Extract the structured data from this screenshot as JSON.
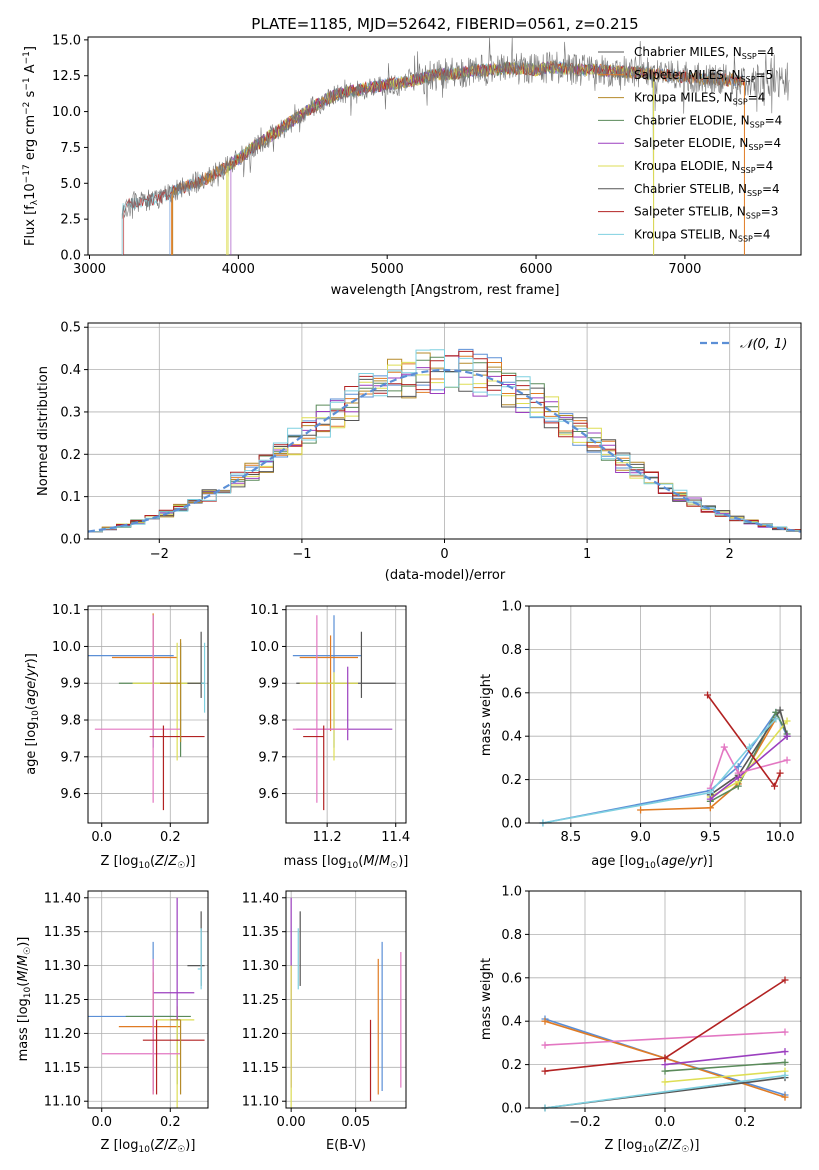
{
  "colors": [
    "#5b8fd6",
    "#e07b24",
    "#b58a2a",
    "#5a8a5a",
    "#9b3fbf",
    "#dede55",
    "#555555",
    "#b22222",
    "#7fd0e0",
    "#e377c2"
  ],
  "chart_data": [
    {
      "id": "spectrum",
      "type": "line",
      "title": "PLATE=1185, MJD=52642, FIBERID=0561, z=0.215",
      "xlabel": "wavelength [Angstrom, rest frame]",
      "ylabel": "Flux [f_λ 10^-17 erg cm^-2 s^-1 A^-1]",
      "xlim": [
        2990,
        7780
      ],
      "ylim": [
        0,
        15.2
      ],
      "xticks": [
        "3000",
        "4000",
        "5000",
        "6000",
        "7000"
      ],
      "yticks": [
        "0.0",
        "2.5",
        "5.0",
        "7.5",
        "10.0",
        "12.5",
        "15.0"
      ],
      "legend": [
        {
          "label": "Chabrier MILES, N",
          "sub": "SSP",
          "val": "=4"
        },
        {
          "label": "Salpeter MILES, N",
          "sub": "SSP",
          "val": "=5"
        },
        {
          "label": "Kroupa MILES, N",
          "sub": "SSP",
          "val": "=4"
        },
        {
          "label": "Chabrier ELODIE, N",
          "sub": "SSP",
          "val": "=4"
        },
        {
          "label": "Salpeter ELODIE, N",
          "sub": "SSP",
          "val": "=4"
        },
        {
          "label": "Kroupa ELODIE, N",
          "sub": "SSP",
          "val": "=4"
        },
        {
          "label": "Chabrier STELIB, N",
          "sub": "SSP",
          "val": "=4"
        },
        {
          "label": "Salpeter STELIB, N",
          "sub": "SSP",
          "val": "=3"
        },
        {
          "label": "Kroupa STELIB, N",
          "sub": "SSP",
          "val": "=4"
        }
      ],
      "legend_placement": "right",
      "data_x": [
        3220,
        3300,
        3400,
        3500,
        3600,
        3700,
        3800,
        3900,
        4000,
        4100,
        4200,
        4300,
        4400,
        4500,
        4600,
        4700,
        4800,
        4900,
        5000,
        5100,
        5200,
        5300,
        5400,
        5500,
        5600,
        5700,
        5800,
        5900,
        6000,
        6100,
        6200,
        6300,
        6400,
        6500,
        6600,
        6700,
        6800,
        6900,
        7000,
        7100,
        7200,
        7300,
        7400
      ],
      "data_y": [
        3.3,
        3.6,
        3.8,
        4.1,
        4.6,
        5.0,
        5.4,
        6.0,
        6.7,
        7.5,
        8.2,
        8.9,
        9.6,
        10.3,
        10.9,
        11.3,
        11.5,
        11.7,
        11.9,
        12.0,
        12.2,
        12.5,
        12.6,
        12.7,
        12.9,
        12.9,
        13.0,
        13.0,
        12.9,
        13.1,
        13.0,
        12.9,
        12.9,
        12.8,
        12.8,
        12.7,
        12.6,
        12.5,
        12.4,
        12.3,
        12.3,
        12.2,
        12.1
      ]
    },
    {
      "id": "residuals",
      "type": "line",
      "ylabel": "Normed distribution",
      "xlabel": "(data-model)/error",
      "xlim": [
        -2.5,
        2.5
      ],
      "ylim": [
        0,
        0.51
      ],
      "xticks": [
        "−2",
        "−1",
        "0",
        "1",
        "2"
      ],
      "yticks": [
        "0.0",
        "0.1",
        "0.2",
        "0.3",
        "0.4",
        "0.5"
      ],
      "legend": "𝒩(0, 1)",
      "legend_placement": "top-right",
      "grid": true
    },
    {
      "id": "age-vs-Z",
      "type": "scatter",
      "xlabel": "Z [log10(Z/Z☉)]",
      "ylabel": "age  [log10(age/yr)]",
      "xlim": [
        -0.04,
        0.31
      ],
      "ylim": [
        9.52,
        10.11
      ],
      "xticks": [
        "0.0",
        "0.2"
      ],
      "yticks": [
        "9.6",
        "9.7",
        "9.8",
        "9.9",
        "10.0",
        "10.1"
      ],
      "points": [
        {
          "x": 0.15,
          "y": 9.975,
          "ci": 0,
          "dx": [
            -0.19,
            0.06
          ],
          "dy": [
            -0.25,
            0.11
          ]
        },
        {
          "x": 0.15,
          "y": 9.97,
          "ci": 1,
          "dx": [
            -0.12,
            0.07
          ],
          "dy": [
            -0.2,
            0.12
          ]
        },
        {
          "x": 0.23,
          "y": 9.9,
          "ci": 3,
          "dx": [
            -0.18,
            0.07
          ],
          "dy": [
            -0.2,
            0.11
          ]
        },
        {
          "x": 0.22,
          "y": 9.9,
          "ci": 5,
          "dx": [
            -0.13,
            0.08
          ],
          "dy": [
            -0.21,
            0.11
          ]
        },
        {
          "x": 0.29,
          "y": 9.9,
          "ci": 6,
          "dx": [
            -0.04,
            0.01
          ],
          "dy": [
            -0.04,
            0.14
          ]
        },
        {
          "x": 0.3,
          "y": 9.9,
          "ci": 8,
          "dx": [
            -0.01,
            0.0
          ],
          "dy": [
            -0.08,
            0.11
          ]
        },
        {
          "x": 0.15,
          "y": 9.775,
          "ci": 9,
          "dx": [
            -0.17,
            0.08
          ],
          "dy": [
            -0.2,
            0.31
          ]
        },
        {
          "x": 0.18,
          "y": 9.755,
          "ci": 7,
          "dx": [
            -0.04,
            0.12
          ],
          "dy": [
            -0.2,
            0.03
          ]
        },
        {
          "x": 0.23,
          "y": 9.9,
          "ci": 2,
          "dx": [
            -0.06,
            0.0
          ],
          "dy": [
            -0.16,
            0.12
          ]
        }
      ]
    },
    {
      "id": "age-vs-mass",
      "type": "scatter",
      "xlabel": "mass [log10(M/M☉)]",
      "xlim": [
        11.08,
        11.43
      ],
      "ylim": [
        9.52,
        10.11
      ],
      "xticks": [
        "11.2",
        "11.4"
      ],
      "yticks": [
        "9.6",
        "9.7",
        "9.8",
        "9.9",
        "10.0",
        "10.1"
      ],
      "points": [
        {
          "x": 11.22,
          "y": 9.975,
          "ci": 0,
          "dx": [
            -0.12,
            0.08
          ],
          "dy": [
            -0.25,
            0.11
          ]
        },
        {
          "x": 11.21,
          "y": 9.97,
          "ci": 1,
          "dx": [
            -0.09,
            0.08
          ],
          "dy": [
            -0.2,
            0.06
          ]
        },
        {
          "x": 11.3,
          "y": 9.9,
          "ci": 6,
          "dx": [
            -0.19,
            0.1
          ],
          "dy": [
            -0.04,
            0.14
          ]
        },
        {
          "x": 11.22,
          "y": 9.9,
          "ci": 5,
          "dx": [
            -0.1,
            0.07
          ],
          "dy": [
            -0.21,
            0.03
          ]
        },
        {
          "x": 11.26,
          "y": 9.775,
          "ci": 4,
          "dx": [
            -0.15,
            0.13
          ],
          "dy": [
            -0.03,
            0.17
          ]
        },
        {
          "x": 11.17,
          "y": 9.775,
          "ci": 9,
          "dx": [
            -0.07,
            0.09
          ],
          "dy": [
            -0.2,
            0.31
          ]
        },
        {
          "x": 11.19,
          "y": 9.755,
          "ci": 7,
          "dx": [
            -0.06,
            0.0
          ],
          "dy": [
            -0.2,
            0.03
          ]
        }
      ]
    },
    {
      "id": "weight-vs-age",
      "type": "line",
      "xlabel": "age  [log10(age/yr)]",
      "ylabel": "mass weight",
      "xlim": [
        8.2,
        10.15
      ],
      "ylim": [
        0,
        1.0
      ],
      "xticks": [
        "8.5",
        "9.0",
        "9.5",
        "10.0"
      ],
      "yticks": [
        "0.0",
        "0.2",
        "0.4",
        "0.6",
        "0.8",
        "1.0"
      ],
      "grid": true,
      "series": [
        {
          "ci": 0,
          "x": [
            8.3,
            9.5,
            9.7,
            9.97,
            10.05
          ],
          "y": [
            0.0,
            0.15,
            0.26,
            0.51,
            0.4
          ]
        },
        {
          "ci": 1,
          "x": [
            9.0,
            9.5,
            9.7,
            9.97
          ],
          "y": [
            0.06,
            0.07,
            0.18,
            0.48
          ]
        },
        {
          "ci": 3,
          "x": [
            9.5,
            9.7,
            9.97,
            10.05
          ],
          "y": [
            0.1,
            0.17,
            0.51,
            0.41
          ]
        },
        {
          "ci": 5,
          "x": [
            9.5,
            9.7,
            10.05
          ],
          "y": [
            0.12,
            0.19,
            0.47
          ]
        },
        {
          "ci": 6,
          "x": [
            9.5,
            9.7,
            10.0,
            10.05
          ],
          "y": [
            0.13,
            0.22,
            0.52,
            0.4
          ]
        },
        {
          "ci": 4,
          "x": [
            9.5,
            9.7,
            10.05
          ],
          "y": [
            0.11,
            0.21,
            0.4
          ]
        },
        {
          "ci": 9,
          "x": [
            9.5,
            9.6,
            9.7,
            10.05
          ],
          "y": [
            0.16,
            0.35,
            0.23,
            0.29
          ]
        },
        {
          "ci": 7,
          "x": [
            9.48,
            9.96,
            10.0
          ],
          "y": [
            0.59,
            0.17,
            0.23
          ]
        },
        {
          "ci": 8,
          "x": [
            8.3,
            9.5,
            9.78,
            9.97
          ],
          "y": [
            0.0,
            0.14,
            0.35,
            0.48
          ]
        }
      ]
    },
    {
      "id": "mass-vs-Z",
      "type": "scatter",
      "xlabel": "Z [log10(Z/Z☉)]",
      "ylabel": "mass [log10(M/M☉)]",
      "xlim": [
        -0.04,
        0.31
      ],
      "ylim": [
        11.09,
        11.41
      ],
      "xticks": [
        "0.0",
        "0.2"
      ],
      "yticks": [
        "11.10",
        "11.15",
        "11.20",
        "11.25",
        "11.30",
        "11.35",
        "11.40"
      ],
      "points": [
        {
          "x": 0.15,
          "y": 11.225,
          "ci": 0,
          "dx": [
            -0.19,
            0.06
          ],
          "dy": [
            -0.11,
            0.11
          ]
        },
        {
          "x": 0.15,
          "y": 11.21,
          "ci": 1,
          "dx": [
            -0.1,
            0.08
          ],
          "dy": [
            -0.1,
            0.08
          ]
        },
        {
          "x": 0.22,
          "y": 11.225,
          "ci": 3,
          "dx": [
            -0.15,
            0.04
          ],
          "dy": [
            -0.1,
            0.0
          ]
        },
        {
          "x": 0.22,
          "y": 11.22,
          "ci": 5,
          "dx": [
            -0.06,
            0.05
          ],
          "dy": [
            -0.13,
            0.02
          ]
        },
        {
          "x": 0.22,
          "y": 11.26,
          "ci": 4,
          "dx": [
            -0.07,
            0.05
          ],
          "dy": [
            -0.04,
            0.14
          ]
        },
        {
          "x": 0.29,
          "y": 11.3,
          "ci": 6,
          "dx": [
            -0.04,
            0.01
          ],
          "dy": [
            -0.03,
            0.08
          ]
        },
        {
          "x": 0.29,
          "y": 11.295,
          "ci": 8,
          "dx": [
            -0.01,
            0.0
          ],
          "dy": [
            -0.03,
            0.06
          ]
        },
        {
          "x": 0.15,
          "y": 11.17,
          "ci": 9,
          "dx": [
            -0.15,
            0.08
          ],
          "dy": [
            -0.06,
            0.14
          ]
        },
        {
          "x": 0.16,
          "y": 11.19,
          "ci": 7,
          "dx": [
            -0.04,
            0.14
          ],
          "dy": [
            -0.08,
            0.03
          ]
        },
        {
          "x": 0.23,
          "y": 11.22,
          "ci": 2,
          "dx": [
            -0.03,
            0.0
          ],
          "dy": [
            -0.11,
            0.0
          ]
        }
      ]
    },
    {
      "id": "mass-vs-ebv",
      "type": "scatter",
      "xlabel": "E(B-V)",
      "xlim": [
        -0.004,
        0.089
      ],
      "ylim": [
        11.09,
        11.41
      ],
      "xticks": [
        "0.00",
        "0.05"
      ],
      "yticks": [
        "11.10",
        "11.15",
        "11.20",
        "11.25",
        "11.30",
        "11.35",
        "11.40"
      ],
      "points": [
        {
          "x": 0.0705,
          "y": 11.225,
          "ci": 0,
          "dy": [
            -0.11,
            0.11
          ]
        },
        {
          "x": 0.0675,
          "y": 11.21,
          "ci": 1,
          "dy": [
            -0.1,
            0.1
          ]
        },
        {
          "x": 0.0,
          "y": 11.26,
          "ci": 4,
          "dy": [
            -0.14,
            0.14
          ]
        },
        {
          "x": 0.0,
          "y": 11.22,
          "ci": 5,
          "dy": [
            -0.13,
            0.08
          ]
        },
        {
          "x": 0.007,
          "y": 11.3,
          "ci": 6,
          "dy": [
            -0.03,
            0.08
          ]
        },
        {
          "x": 0.0055,
          "y": 11.295,
          "ci": 8,
          "dy": [
            -0.03,
            0.06
          ]
        },
        {
          "x": 0.085,
          "y": 11.22,
          "ci": 9,
          "dy": [
            -0.1,
            0.1
          ]
        },
        {
          "x": 0.0615,
          "y": 11.16,
          "ci": 7,
          "dy": [
            -0.06,
            0.06
          ]
        }
      ]
    },
    {
      "id": "weight-vs-Z",
      "type": "line",
      "xlabel": "Z [log10(Z/Z☉)]",
      "ylabel": "mass weight",
      "xlim": [
        -0.34,
        0.34
      ],
      "ylim": [
        0,
        1.0
      ],
      "xticks": [
        "−0.2",
        "0.0",
        "0.2"
      ],
      "yticks": [
        "0.0",
        "0.2",
        "0.4",
        "0.6",
        "0.8",
        "1.0"
      ],
      "grid": true,
      "series": [
        {
          "ci": 0,
          "x": [
            -0.3,
            0.0,
            0.3
          ],
          "y": [
            0.41,
            0.23,
            0.06
          ]
        },
        {
          "ci": 1,
          "x": [
            -0.3,
            0.0,
            0.3
          ],
          "y": [
            0.4,
            0.23,
            0.05
          ]
        },
        {
          "ci": 3,
          "x": [
            0.0,
            0.3
          ],
          "y": [
            0.17,
            0.21
          ]
        },
        {
          "ci": 5,
          "x": [
            0.0,
            0.3
          ],
          "y": [
            0.12,
            0.17
          ]
        },
        {
          "ci": 6,
          "x": [
            -0.3,
            0.3
          ],
          "y": [
            0.0,
            0.14
          ]
        },
        {
          "ci": 4,
          "x": [
            0.0,
            0.3
          ],
          "y": [
            0.2,
            0.26
          ]
        },
        {
          "ci": 9,
          "x": [
            -0.3,
            0.3
          ],
          "y": [
            0.29,
            0.35
          ]
        },
        {
          "ci": 7,
          "x": [
            -0.3,
            0.0,
            0.3
          ],
          "y": [
            0.17,
            0.23,
            0.59
          ]
        },
        {
          "ci": 8,
          "x": [
            -0.3,
            0.3
          ],
          "y": [
            0.0,
            0.15
          ]
        }
      ]
    }
  ]
}
